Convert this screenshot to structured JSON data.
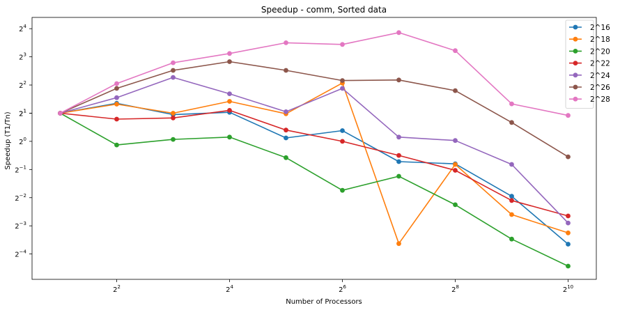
{
  "chart_data": {
    "type": "line",
    "title": "Speedup - comm, Sorted data",
    "xlabel": "Number of Processors",
    "ylabel": "Speedup (T1/Tn)",
    "x_scale": "log2",
    "y_scale": "log2",
    "xlim_log2": [
      0.5,
      10.5
    ],
    "ylim_log2": [
      -4.9,
      4.4
    ],
    "x_ticks": [
      {
        "base": "2",
        "exp": "2",
        "log2": 2
      },
      {
        "base": "2",
        "exp": "4",
        "log2": 4
      },
      {
        "base": "2",
        "exp": "6",
        "log2": 6
      },
      {
        "base": "2",
        "exp": "8",
        "log2": 8
      },
      {
        "base": "2",
        "exp": "10",
        "log2": 10
      }
    ],
    "y_ticks": [
      {
        "base": "2",
        "exp": "−4",
        "log2": -4
      },
      {
        "base": "2",
        "exp": "−3",
        "log2": -3
      },
      {
        "base": "2",
        "exp": "−2",
        "log2": -2
      },
      {
        "base": "2",
        "exp": "−1",
        "log2": -1
      },
      {
        "base": "2",
        "exp": "0",
        "log2": 0
      },
      {
        "base": "2",
        "exp": "1",
        "log2": 1
      },
      {
        "base": "2",
        "exp": "1",
        "log2": 1
      },
      {
        "base": "2",
        "exp": "2",
        "log2": 2
      },
      {
        "base": "2",
        "exp": "3",
        "log2": 3
      },
      {
        "base": "2",
        "exp": "4",
        "log2": 4
      }
    ],
    "legend_position": "top-right",
    "x_log2": [
      1,
      2,
      3,
      4,
      5,
      6,
      7,
      8,
      9,
      10
    ],
    "series": [
      {
        "name": "2^16",
        "color": "#1f77b4",
        "y_log2": [
          1.0,
          1.35,
          0.95,
          1.03,
          0.12,
          0.38,
          -0.72,
          -0.8,
          -1.95,
          -3.65
        ]
      },
      {
        "name": "2^18",
        "color": "#ff7f0e",
        "y_log2": [
          1.0,
          1.32,
          1.0,
          1.42,
          0.98,
          2.07,
          -3.63,
          -0.82,
          -2.6,
          -3.25
        ]
      },
      {
        "name": "2^20",
        "color": "#2ca02c",
        "y_log2": [
          1.0,
          -0.13,
          0.07,
          0.15,
          -0.58,
          -1.74,
          -1.24,
          -2.25,
          -3.47,
          -4.43
        ]
      },
      {
        "name": "2^22",
        "color": "#d62728",
        "y_log2": [
          1.0,
          0.79,
          0.83,
          1.1,
          0.4,
          0.0,
          -0.5,
          -1.03,
          -2.1,
          -2.65
        ]
      },
      {
        "name": "2^24",
        "color": "#9467bd",
        "y_log2": [
          1.0,
          1.55,
          2.27,
          1.69,
          1.05,
          1.88,
          0.15,
          0.03,
          -0.82,
          -2.9
        ]
      },
      {
        "name": "2^26",
        "color": "#8c564b",
        "y_log2": [
          1.0,
          1.88,
          2.52,
          2.83,
          2.52,
          2.16,
          2.18,
          1.8,
          0.67,
          -0.55
        ]
      },
      {
        "name": "2^28",
        "color": "#e377c2",
        "y_log2": [
          1.0,
          2.05,
          2.79,
          3.12,
          3.5,
          3.44,
          3.86,
          3.22,
          1.33,
          0.92
        ]
      }
    ]
  }
}
